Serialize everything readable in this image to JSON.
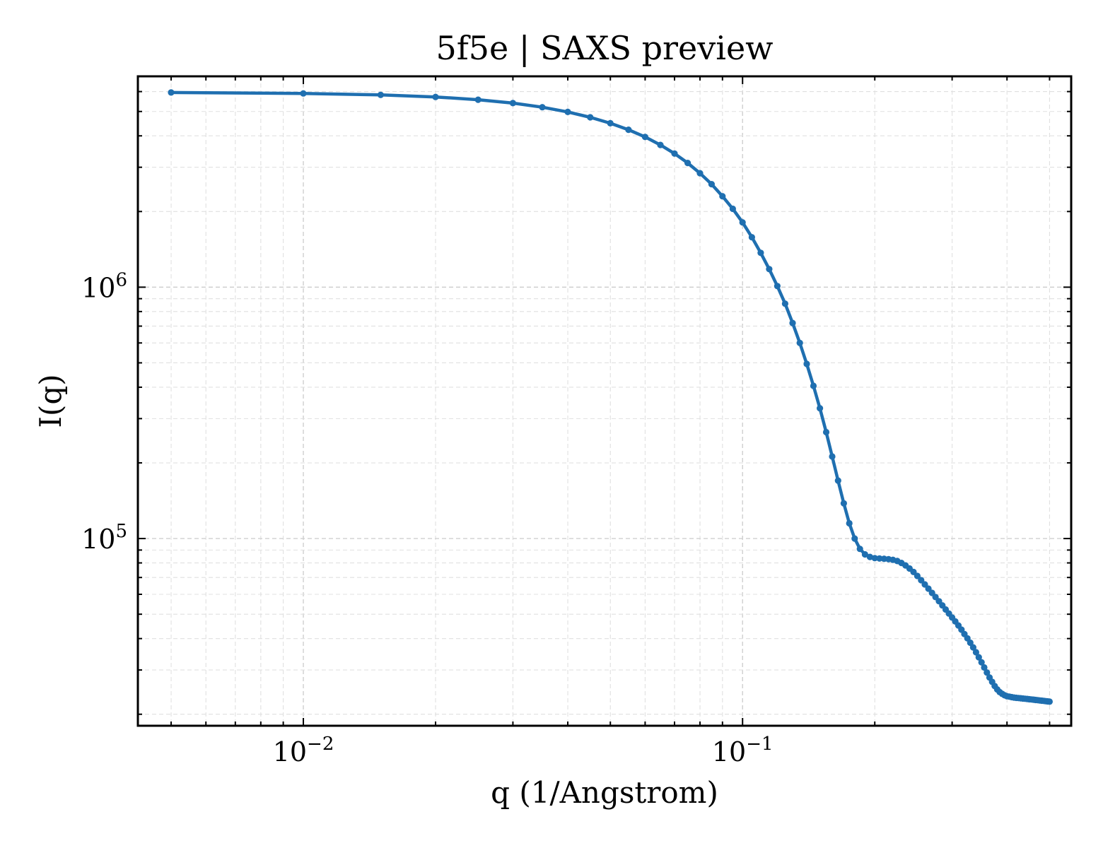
{
  "chart_data": {
    "type": "line",
    "title": "5f5e | SAXS preview",
    "xlabel": "q (1/Angstrom)",
    "ylabel": "I(q)",
    "xscale": "log",
    "yscale": "log",
    "xlim": [
      0.0042,
      0.56
    ],
    "ylim": [
      18000,
      6900000
    ],
    "x_ticks": [
      {
        "value": 0.01,
        "base": "10",
        "exp": "−2"
      },
      {
        "value": 0.1,
        "base": "10",
        "exp": "−1"
      }
    ],
    "y_ticks": [
      {
        "value": 100000,
        "base": "10",
        "exp": "5"
      },
      {
        "value": 1000000,
        "base": "10",
        "exp": "6"
      }
    ],
    "grid": true,
    "color": "#1f6fb0",
    "series": [
      {
        "x": [
          0.005,
          0.01,
          0.015,
          0.02,
          0.025,
          0.03,
          0.035,
          0.04,
          0.045,
          0.05,
          0.055,
          0.06,
          0.065,
          0.07,
          0.075,
          0.08,
          0.085,
          0.09,
          0.095,
          0.1,
          0.105,
          0.11,
          0.115,
          0.12,
          0.125,
          0.13,
          0.135,
          0.14,
          0.145,
          0.15,
          0.155,
          0.16,
          0.165,
          0.17,
          0.175,
          0.18,
          0.185,
          0.19,
          0.195,
          0.2,
          0.205,
          0.21,
          0.215,
          0.22,
          0.225,
          0.23,
          0.235,
          0.24,
          0.245,
          0.25,
          0.255,
          0.26,
          0.265,
          0.27,
          0.275,
          0.28,
          0.285,
          0.29,
          0.295,
          0.3,
          0.305,
          0.31,
          0.315,
          0.32,
          0.325,
          0.33,
          0.335,
          0.34,
          0.345,
          0.35,
          0.355,
          0.36,
          0.365,
          0.37,
          0.375,
          0.38,
          0.385,
          0.39,
          0.395,
          0.4,
          0.405,
          0.41,
          0.415,
          0.42,
          0.425,
          0.43,
          0.435,
          0.44,
          0.445,
          0.45,
          0.455,
          0.46,
          0.465,
          0.47,
          0.475,
          0.48,
          0.485,
          0.49,
          0.495,
          0.5
        ],
        "y": [
          5950000,
          5900000,
          5820000,
          5710000,
          5570000,
          5400000,
          5200000,
          4980000,
          4740000,
          4490000,
          4230000,
          3960000,
          3680000,
          3400000,
          3120000,
          2840000,
          2570000,
          2300000,
          2050000,
          1810000,
          1580000,
          1370000,
          1180000,
          1010000,
          860000,
          720000,
          600000,
          495000,
          405000,
          330000,
          265000,
          212000,
          170000,
          138000,
          115000,
          100000,
          91000,
          86500,
          84500,
          83600,
          83300,
          83100,
          82800,
          82300,
          81400,
          80000,
          78200,
          76000,
          73600,
          71000,
          68300,
          65700,
          63200,
          60800,
          58500,
          56300,
          54200,
          52200,
          50300,
          48500,
          46800,
          45100,
          43400,
          41700,
          40100,
          38500,
          36900,
          35300,
          33700,
          32200,
          30700,
          29300,
          28000,
          26900,
          25900,
          25100,
          24500,
          24100,
          23800,
          23600,
          23500,
          23400,
          23300,
          23250,
          23200,
          23150,
          23100,
          23050,
          23000,
          22950,
          22900,
          22850,
          22800,
          22750,
          22700,
          22650,
          22600,
          22550,
          22500,
          22450
        ]
      }
    ]
  }
}
